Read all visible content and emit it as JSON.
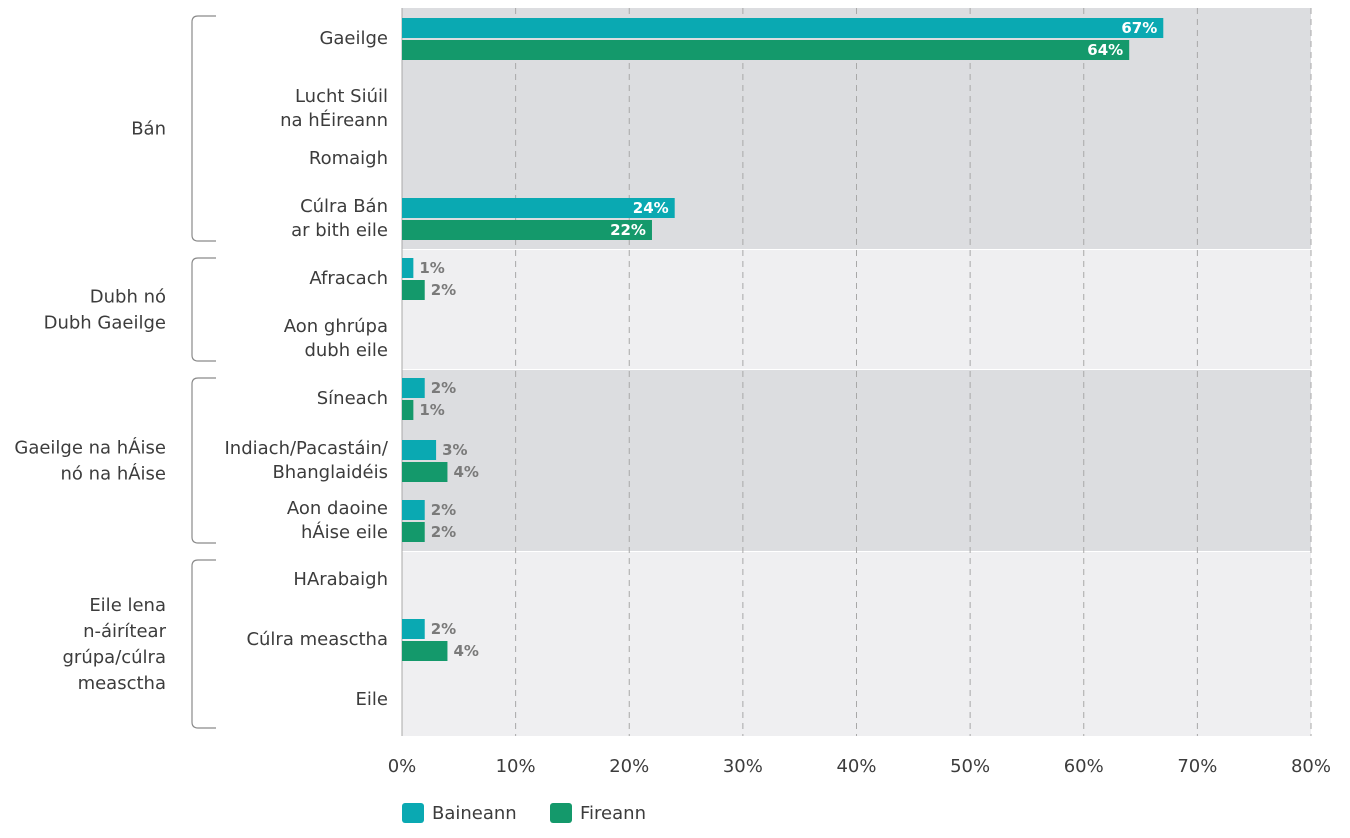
{
  "chart_data": {
    "type": "bar",
    "orientation": "horizontal",
    "xlim": [
      0,
      80
    ],
    "x_ticks": [
      0,
      10,
      20,
      30,
      40,
      50,
      60,
      70,
      80
    ],
    "x_tick_suffix": "%",
    "grid": "vertical dashed",
    "legend_position": "bottom-center",
    "colors": {
      "Baineann": "#0aa9b2",
      "Fireann": "#14996b",
      "band_dark": "#dcdde0",
      "band_light": "#efeff1",
      "axis_text": "#3c3c3c",
      "value_label_outside": "#7a7a7a"
    },
    "series": [
      {
        "name": "Baineann",
        "color": "#0aa9b2"
      },
      {
        "name": "Fireann",
        "color": "#14996b"
      }
    ],
    "groups": [
      {
        "label": [
          "Bán"
        ],
        "categories": [
          {
            "label": [
              "Gaeilge"
            ],
            "values": [
              67,
              64
            ]
          },
          {
            "label": [
              "Lucht Siúil",
              "na hÉireann"
            ],
            "values": [
              0,
              0
            ]
          },
          {
            "label": [
              "Romaigh"
            ],
            "values": [
              0,
              0
            ]
          },
          {
            "label": [
              "Cúlra Bán",
              "ar bith eile"
            ],
            "values": [
              24,
              22
            ]
          }
        ]
      },
      {
        "label": [
          "Dubh nó",
          "Dubh Gaeilge"
        ],
        "categories": [
          {
            "label": [
              "Afracach"
            ],
            "values": [
              1,
              2
            ]
          },
          {
            "label": [
              "Aon ghrúpa",
              "dubh eile"
            ],
            "values": [
              0,
              0
            ]
          }
        ]
      },
      {
        "label": [
          "Gaeilge na hÁise",
          "nó na hÁise"
        ],
        "categories": [
          {
            "label": [
              "Síneach"
            ],
            "values": [
              2,
              1
            ]
          },
          {
            "label": [
              "Indiach/Pacastáin/",
              "Bhanglaidéis"
            ],
            "values": [
              3,
              4
            ]
          },
          {
            "label": [
              "Aon daoine",
              "hÁise eile"
            ],
            "values": [
              2,
              2
            ]
          }
        ]
      },
      {
        "label": [
          "Eile lena",
          "n-áirítear",
          "grúpa/cúlra",
          "measctha"
        ],
        "categories": [
          {
            "label": [
              "HArabaigh"
            ],
            "values": [
              0,
              0
            ]
          },
          {
            "label": [
              "Cúlra measctha"
            ],
            "values": [
              2,
              4
            ]
          },
          {
            "label": [
              "Eile"
            ],
            "values": [
              0,
              0
            ]
          }
        ]
      }
    ]
  }
}
